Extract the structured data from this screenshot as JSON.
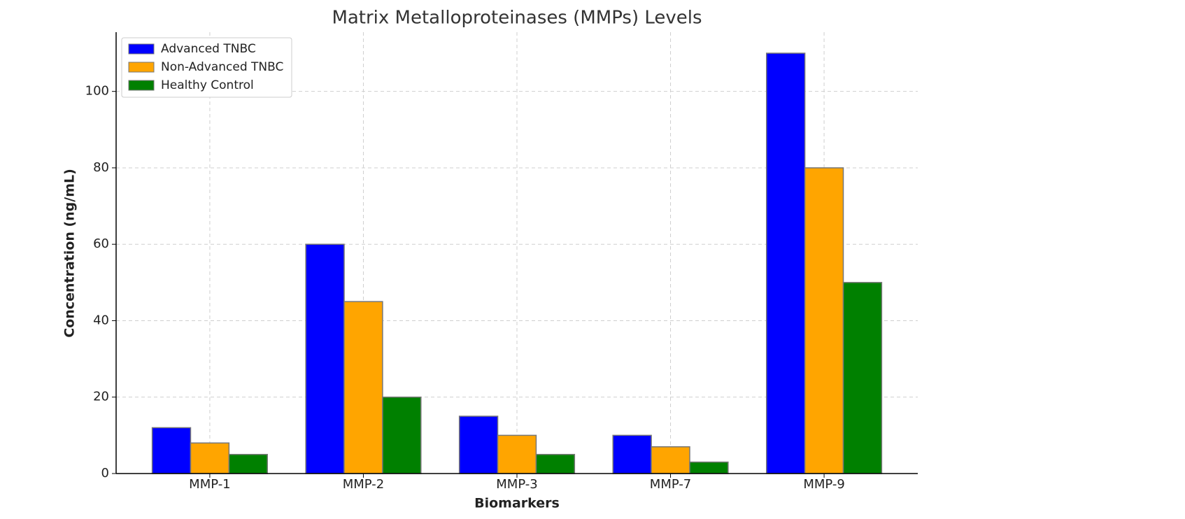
{
  "chart_data": {
    "type": "bar",
    "title": "Matrix Metalloproteinases (MMPs) Levels",
    "x_label": "Biomarkers",
    "y_label": "Concentration (ng/mL)",
    "categories": [
      "MMP-1",
      "MMP-2",
      "MMP-3",
      "MMP-7",
      "MMP-9"
    ],
    "series": [
      {
        "name": "Advanced TNBC",
        "color": "#0000ff",
        "values": [
          12,
          60,
          15,
          10,
          110
        ]
      },
      {
        "name": "Non-Advanced TNBC",
        "color": "#ffa500",
        "values": [
          8,
          45,
          10,
          7,
          80
        ]
      },
      {
        "name": "Healthy Control",
        "color": "#008000",
        "values": [
          5,
          20,
          5,
          3,
          50
        ]
      }
    ],
    "ylim": [
      0,
      115.5
    ],
    "yticks": [
      0,
      20,
      40,
      60,
      80,
      100
    ],
    "grid": true,
    "legend": "upper-left"
  }
}
